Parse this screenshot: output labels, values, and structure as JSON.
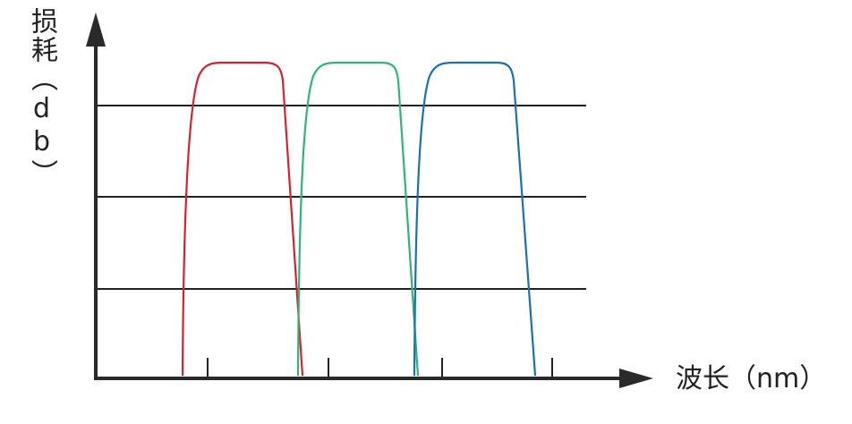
{
  "axes": {
    "y_label": "损耗（db）",
    "x_label": "波长（nm）"
  }
}
